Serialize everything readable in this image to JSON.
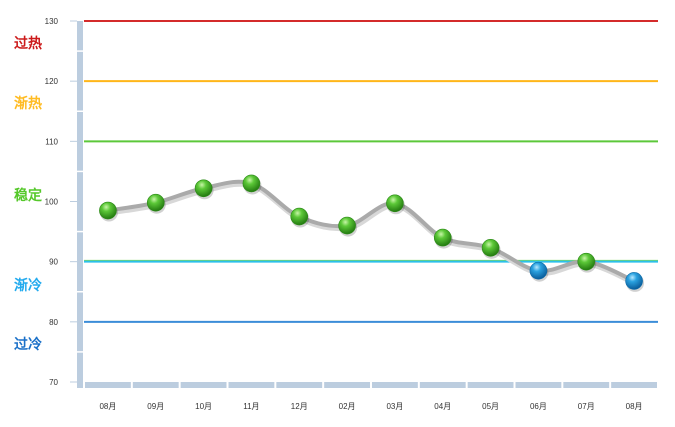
{
  "chart_data": {
    "type": "line",
    "categories": [
      "08月",
      "09月",
      "10月",
      "11月",
      "12月",
      "02月",
      "03月",
      "04月",
      "05月",
      "06月",
      "07月",
      "08月"
    ],
    "values": [
      98.5,
      99.8,
      102.2,
      103,
      97.5,
      96,
      99.7,
      94,
      92.3,
      88.5,
      90,
      86.8
    ],
    "ylim": [
      70,
      130
    ],
    "yticks": [
      "70",
      "80",
      "90",
      "100",
      "110",
      "120",
      "130"
    ],
    "grid": false,
    "thresholds": [
      {
        "value": 130,
        "color": "#d42b2b"
      },
      {
        "value": 120,
        "color": "#ffb619"
      },
      {
        "value": 110,
        "color": "#5cc83a"
      },
      {
        "value": 90,
        "color": "#2cc0ea"
      },
      {
        "value": 80,
        "color": "#3b8dd8"
      }
    ],
    "zones": [
      {
        "label": "过热",
        "color": "#cc1a1a"
      },
      {
        "label": "渐热",
        "color": "#ffbb22"
      },
      {
        "label": "稳定",
        "color": "#55c82a"
      },
      {
        "label": "渐冷",
        "color": "#22aaee"
      },
      {
        "label": "过冷",
        "color": "#1a70c8"
      }
    ],
    "marker_colors": {
      "normal": "#3ea824",
      "below": "#1b8fd0"
    },
    "line_color": "#aaaaaa"
  }
}
